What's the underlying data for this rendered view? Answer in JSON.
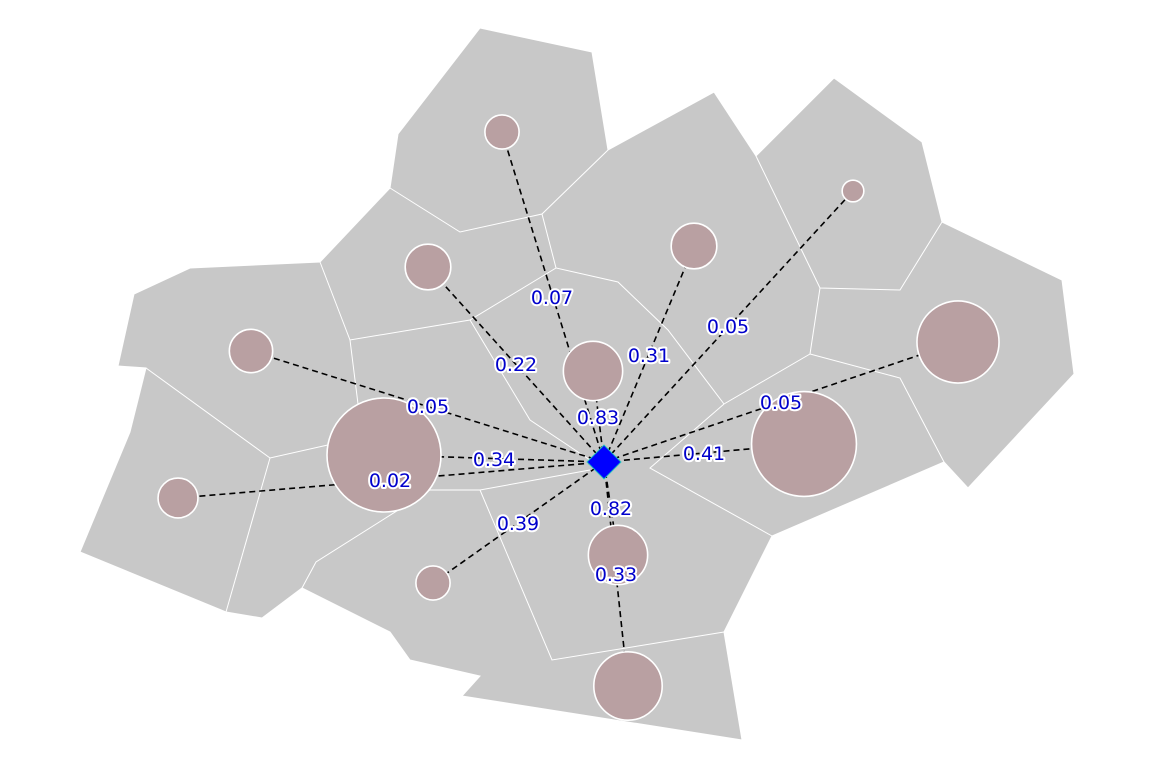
{
  "hub": {
    "name": "hub-location"
  },
  "colors": {
    "land": "#c8c8c8",
    "circle": "#b9a0a2",
    "hub": "#0000ff",
    "label": "#0000cc",
    "line": "#000000"
  },
  "flows": [
    {
      "id": "n1",
      "value": 0.07,
      "label": "0.07",
      "weight": 0.3
    },
    {
      "id": "n2",
      "value": 0.22,
      "label": "0.22",
      "weight": 0.4
    },
    {
      "id": "n3",
      "value": 0.05,
      "label": "0.05",
      "weight": 0.38
    },
    {
      "id": "n4",
      "value": 0.02,
      "label": "0.02",
      "weight": 0.35
    },
    {
      "id": "n5",
      "value": 0.34,
      "label": "0.34",
      "weight": 1.0
    },
    {
      "id": "n6",
      "value": 0.39,
      "label": "0.39",
      "weight": 0.3
    },
    {
      "id": "n7",
      "value": 0.83,
      "label": "0.83",
      "weight": 0.52
    },
    {
      "id": "n8",
      "value": 0.31,
      "label": "0.31",
      "weight": 0.4
    },
    {
      "id": "n9",
      "value": 0.05,
      "label": "0.05",
      "weight": 0.19
    },
    {
      "id": "n10",
      "value": 0.05,
      "label": "0.05",
      "weight": 0.72
    },
    {
      "id": "n11",
      "value": 0.41,
      "label": "0.41",
      "weight": 0.92
    },
    {
      "id": "n12",
      "value": 0.82,
      "label": "0.82",
      "weight": 0.52
    },
    {
      "id": "n13",
      "value": 0.33,
      "label": "0.33",
      "weight": 0.6
    }
  ]
}
